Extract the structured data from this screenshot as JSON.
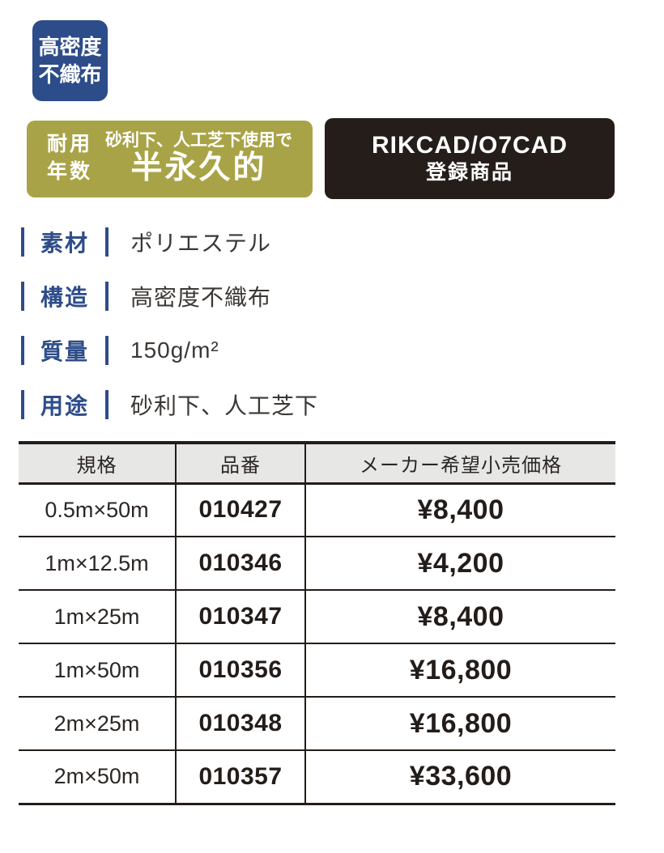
{
  "colors": {
    "navy": "#2d4c8a",
    "olive": "#a9a348",
    "black_badge": "#241d19",
    "table_line": "#231d19",
    "header_bg": "#e7e7e6",
    "text_dark": "#3b3734"
  },
  "badge_fabric": {
    "line1": "高密度",
    "line2": "不織布"
  },
  "badge_durability": {
    "label_line1": "耐用",
    "label_line2": "年数",
    "condition": "砂利下、人工芝下使用で",
    "value": "半永久的"
  },
  "badge_cad": {
    "line1": "RIKCAD/O7CAD",
    "line2": "登録商品"
  },
  "specs": [
    {
      "label": "素材",
      "value": "ポリエステル"
    },
    {
      "label": "構造",
      "value": "高密度不織布"
    },
    {
      "label": "質量",
      "value": "150g/m²"
    },
    {
      "label": "用途",
      "value": "砂利下、人工芝下"
    }
  ],
  "table": {
    "headers": [
      "規格",
      "品番",
      "メーカー希望小売価格"
    ],
    "rows": [
      [
        "0.5m×50m",
        "010427",
        "¥8,400"
      ],
      [
        "1m×12.5m",
        "010346",
        "¥4,200"
      ],
      [
        "1m×25m",
        "010347",
        "¥8,400"
      ],
      [
        "1m×50m",
        "010356",
        "¥16,800"
      ],
      [
        "2m×25m",
        "010348",
        "¥16,800"
      ],
      [
        "2m×50m",
        "010357",
        "¥33,600"
      ]
    ]
  }
}
